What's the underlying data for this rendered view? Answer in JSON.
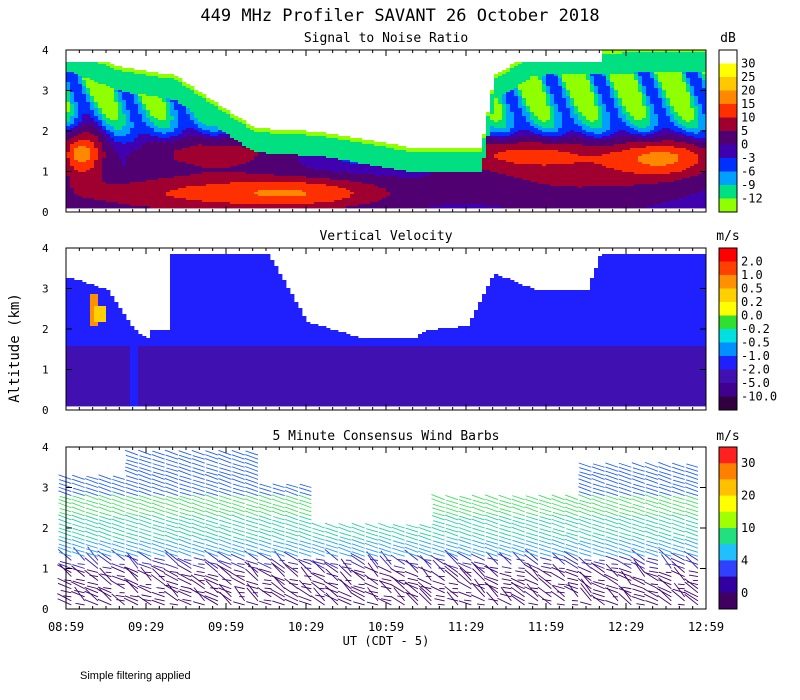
{
  "figure": {
    "title": "449 MHz Profiler SAVANT 26 October 2018",
    "ylabel": "Altitude (km)",
    "xlabel": "UT (CDT - 5)",
    "xticks": [
      "08:59",
      "09:29",
      "09:59",
      "10:29",
      "10:59",
      "11:29",
      "11:59",
      "12:29",
      "12:59"
    ],
    "yticks": [
      "0",
      "1",
      "2",
      "3",
      "4"
    ],
    "footer": "Simple filtering applied"
  },
  "chart_data": [
    {
      "type": "heatmap",
      "title": "Signal to Noise Ratio",
      "xlabel": "UT (CDT - 5)",
      "ylabel": "Altitude (km)",
      "ylim": [
        0,
        4
      ],
      "colorbar": {
        "unit": "dB",
        "labels": [
          "30",
          "25",
          "20",
          "15",
          "10",
          "5",
          "0",
          "-3",
          "-6",
          "-9",
          "-12"
        ],
        "colors": [
          "#ffffff",
          "#ffff00",
          "#ffc800",
          "#ff8800",
          "#ff3000",
          "#a00030",
          "#500070",
          "#4000b0",
          "#0030ff",
          "#00a0ff",
          "#00e080",
          "#90ff00"
        ]
      }
    },
    {
      "type": "heatmap",
      "title": "Vertical Velocity",
      "xlabel": "UT (CDT - 5)",
      "ylabel": "Altitude (km)",
      "ylim": [
        0,
        4
      ],
      "colorbar": {
        "unit": "m/s",
        "labels": [
          "2.0",
          "1.0",
          "0.5",
          "0.2",
          "0.0",
          "-0.2",
          "-0.5",
          "-1.0",
          "-2.0",
          "-5.0",
          "-10.0"
        ],
        "colors": [
          "#ff0000",
          "#ff4000",
          "#ff9000",
          "#ffd000",
          "#ffff00",
          "#30e030",
          "#00e0e0",
          "#0090ff",
          "#2020ff",
          "#4010b0",
          "#400090",
          "#300040"
        ]
      }
    },
    {
      "type": "scatter",
      "title": "5 Minute Consensus Wind Barbs",
      "xlabel": "UT (CDT - 5)",
      "ylabel": "Altitude (km)",
      "ylim": [
        0,
        4
      ],
      "colorbar": {
        "unit": "m/s",
        "labels": [
          "30",
          "20",
          "10",
          "4",
          "0"
        ],
        "colors": [
          "#ff2020",
          "#ff8000",
          "#ffc000",
          "#ffff00",
          "#a0ff00",
          "#20e080",
          "#20c0ff",
          "#3040ff",
          "#3000a0",
          "#400060"
        ]
      }
    }
  ]
}
